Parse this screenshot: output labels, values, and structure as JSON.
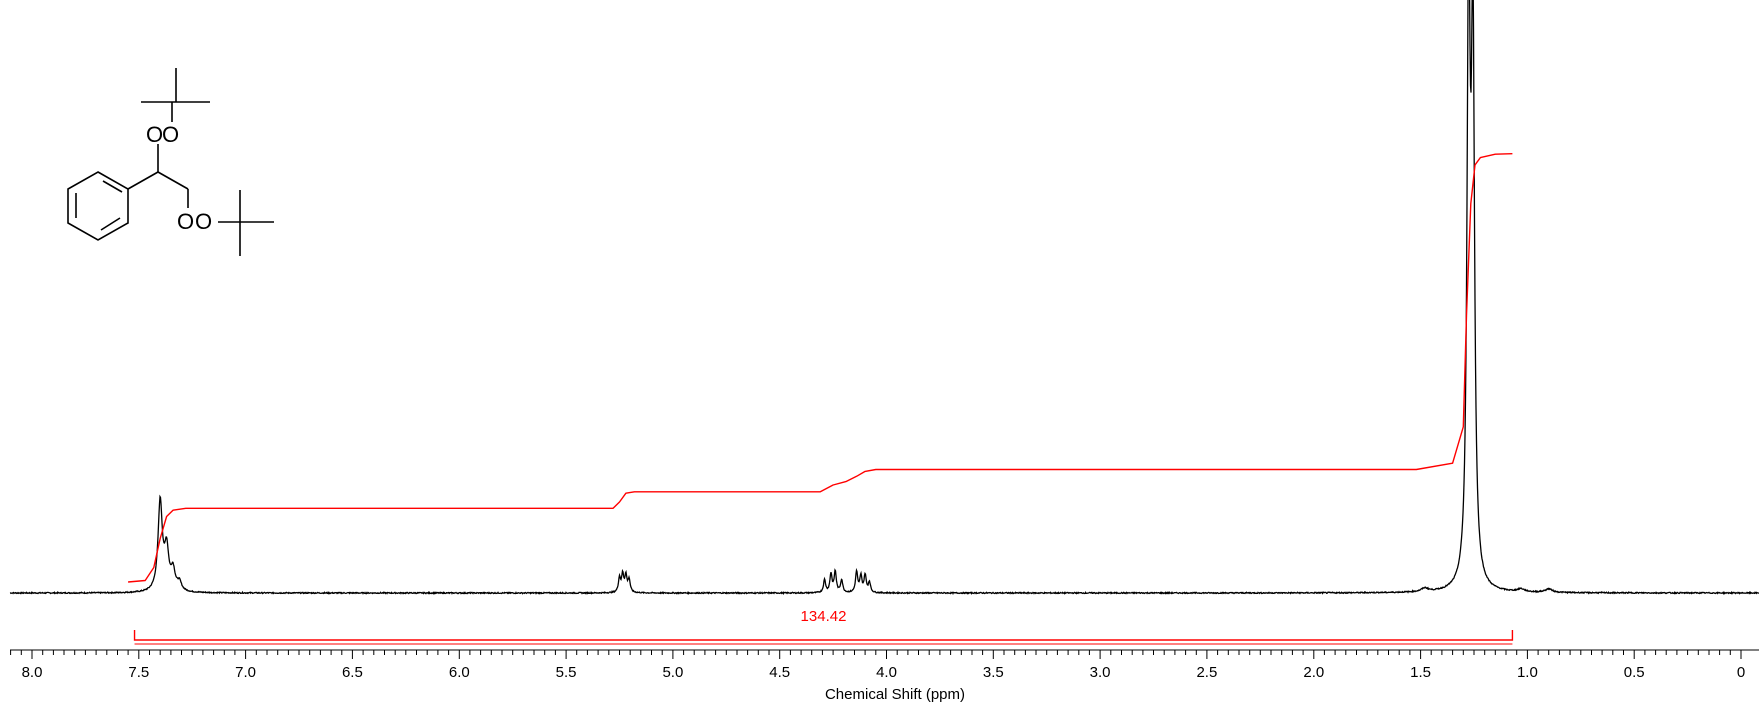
{
  "chart_data": {
    "type": "line",
    "title": "",
    "xlabel": "Chemical Shift (ppm)",
    "ylabel": "",
    "x_range": [
      8.1,
      0.0
    ],
    "x_reversed": true,
    "grid": false,
    "x_ticks": [
      {
        "value": 8.0,
        "label": "8.0"
      },
      {
        "value": 7.5,
        "label": "7.5"
      },
      {
        "value": 7.0,
        "label": "7.0"
      },
      {
        "value": 6.5,
        "label": "6.5"
      },
      {
        "value": 6.0,
        "label": "6.0"
      },
      {
        "value": 5.5,
        "label": "5.5"
      },
      {
        "value": 5.0,
        "label": "5.0"
      },
      {
        "value": 4.5,
        "label": "4.5"
      },
      {
        "value": 4.0,
        "label": "4.0"
      },
      {
        "value": 3.5,
        "label": "3.5"
      },
      {
        "value": 3.0,
        "label": "3.0"
      },
      {
        "value": 2.5,
        "label": "2.5"
      },
      {
        "value": 2.0,
        "label": "2.0"
      },
      {
        "value": 1.5,
        "label": "1.5"
      },
      {
        "value": 1.0,
        "label": "1.0"
      },
      {
        "value": 0.5,
        "label": "0.5"
      },
      {
        "value": 0.0,
        "label": "0"
      }
    ],
    "spectrum_peaks": [
      {
        "ppm": 7.4,
        "height": 0.155,
        "width": 0.012
      },
      {
        "ppm": 7.37,
        "height": 0.07,
        "width": 0.012
      },
      {
        "ppm": 7.34,
        "height": 0.035,
        "width": 0.012
      },
      {
        "ppm": 7.31,
        "height": 0.015,
        "width": 0.012
      },
      {
        "ppm": 5.25,
        "height": 0.025,
        "width": 0.006
      },
      {
        "ppm": 5.235,
        "height": 0.03,
        "width": 0.006
      },
      {
        "ppm": 5.22,
        "height": 0.028,
        "width": 0.006
      },
      {
        "ppm": 5.205,
        "height": 0.022,
        "width": 0.006
      },
      {
        "ppm": 4.29,
        "height": 0.022,
        "width": 0.006
      },
      {
        "ppm": 4.26,
        "height": 0.032,
        "width": 0.006
      },
      {
        "ppm": 4.24,
        "height": 0.036,
        "width": 0.006
      },
      {
        "ppm": 4.21,
        "height": 0.022,
        "width": 0.006
      },
      {
        "ppm": 4.14,
        "height": 0.036,
        "width": 0.006
      },
      {
        "ppm": 4.12,
        "height": 0.028,
        "width": 0.006
      },
      {
        "ppm": 4.1,
        "height": 0.03,
        "width": 0.006
      },
      {
        "ppm": 4.08,
        "height": 0.018,
        "width": 0.006
      },
      {
        "ppm": 1.275,
        "height": 1.0,
        "width": 0.009
      },
      {
        "ppm": 1.255,
        "height": 0.92,
        "width": 0.009
      },
      {
        "ppm": 1.48,
        "height": 0.006,
        "width": 0.02
      },
      {
        "ppm": 1.03,
        "height": 0.005,
        "width": 0.02
      },
      {
        "ppm": 0.9,
        "height": 0.006,
        "width": 0.02
      }
    ],
    "integral_curve": [
      [
        7.55,
        0.0
      ],
      [
        7.47,
        0.003
      ],
      [
        7.43,
        0.03
      ],
      [
        7.4,
        0.09
      ],
      [
        7.37,
        0.135
      ],
      [
        7.34,
        0.148
      ],
      [
        7.28,
        0.152
      ],
      [
        5.28,
        0.152
      ],
      [
        5.25,
        0.165
      ],
      [
        5.22,
        0.183
      ],
      [
        5.18,
        0.186
      ],
      [
        4.31,
        0.186
      ],
      [
        4.25,
        0.2
      ],
      [
        4.19,
        0.207
      ],
      [
        4.14,
        0.218
      ],
      [
        4.1,
        0.228
      ],
      [
        4.05,
        0.232
      ],
      [
        1.52,
        0.232
      ],
      [
        1.35,
        0.245
      ],
      [
        1.3,
        0.32
      ],
      [
        1.285,
        0.55
      ],
      [
        1.265,
        0.78
      ],
      [
        1.245,
        0.86
      ],
      [
        1.22,
        0.875
      ],
      [
        1.15,
        0.882
      ],
      [
        1.07,
        0.883
      ]
    ],
    "integrals": [
      {
        "from_ppm": 7.52,
        "to_ppm": 1.07,
        "value": "134.42"
      }
    ]
  },
  "structure": {
    "atom_labels": [
      "O",
      "O",
      "O",
      "O"
    ]
  }
}
